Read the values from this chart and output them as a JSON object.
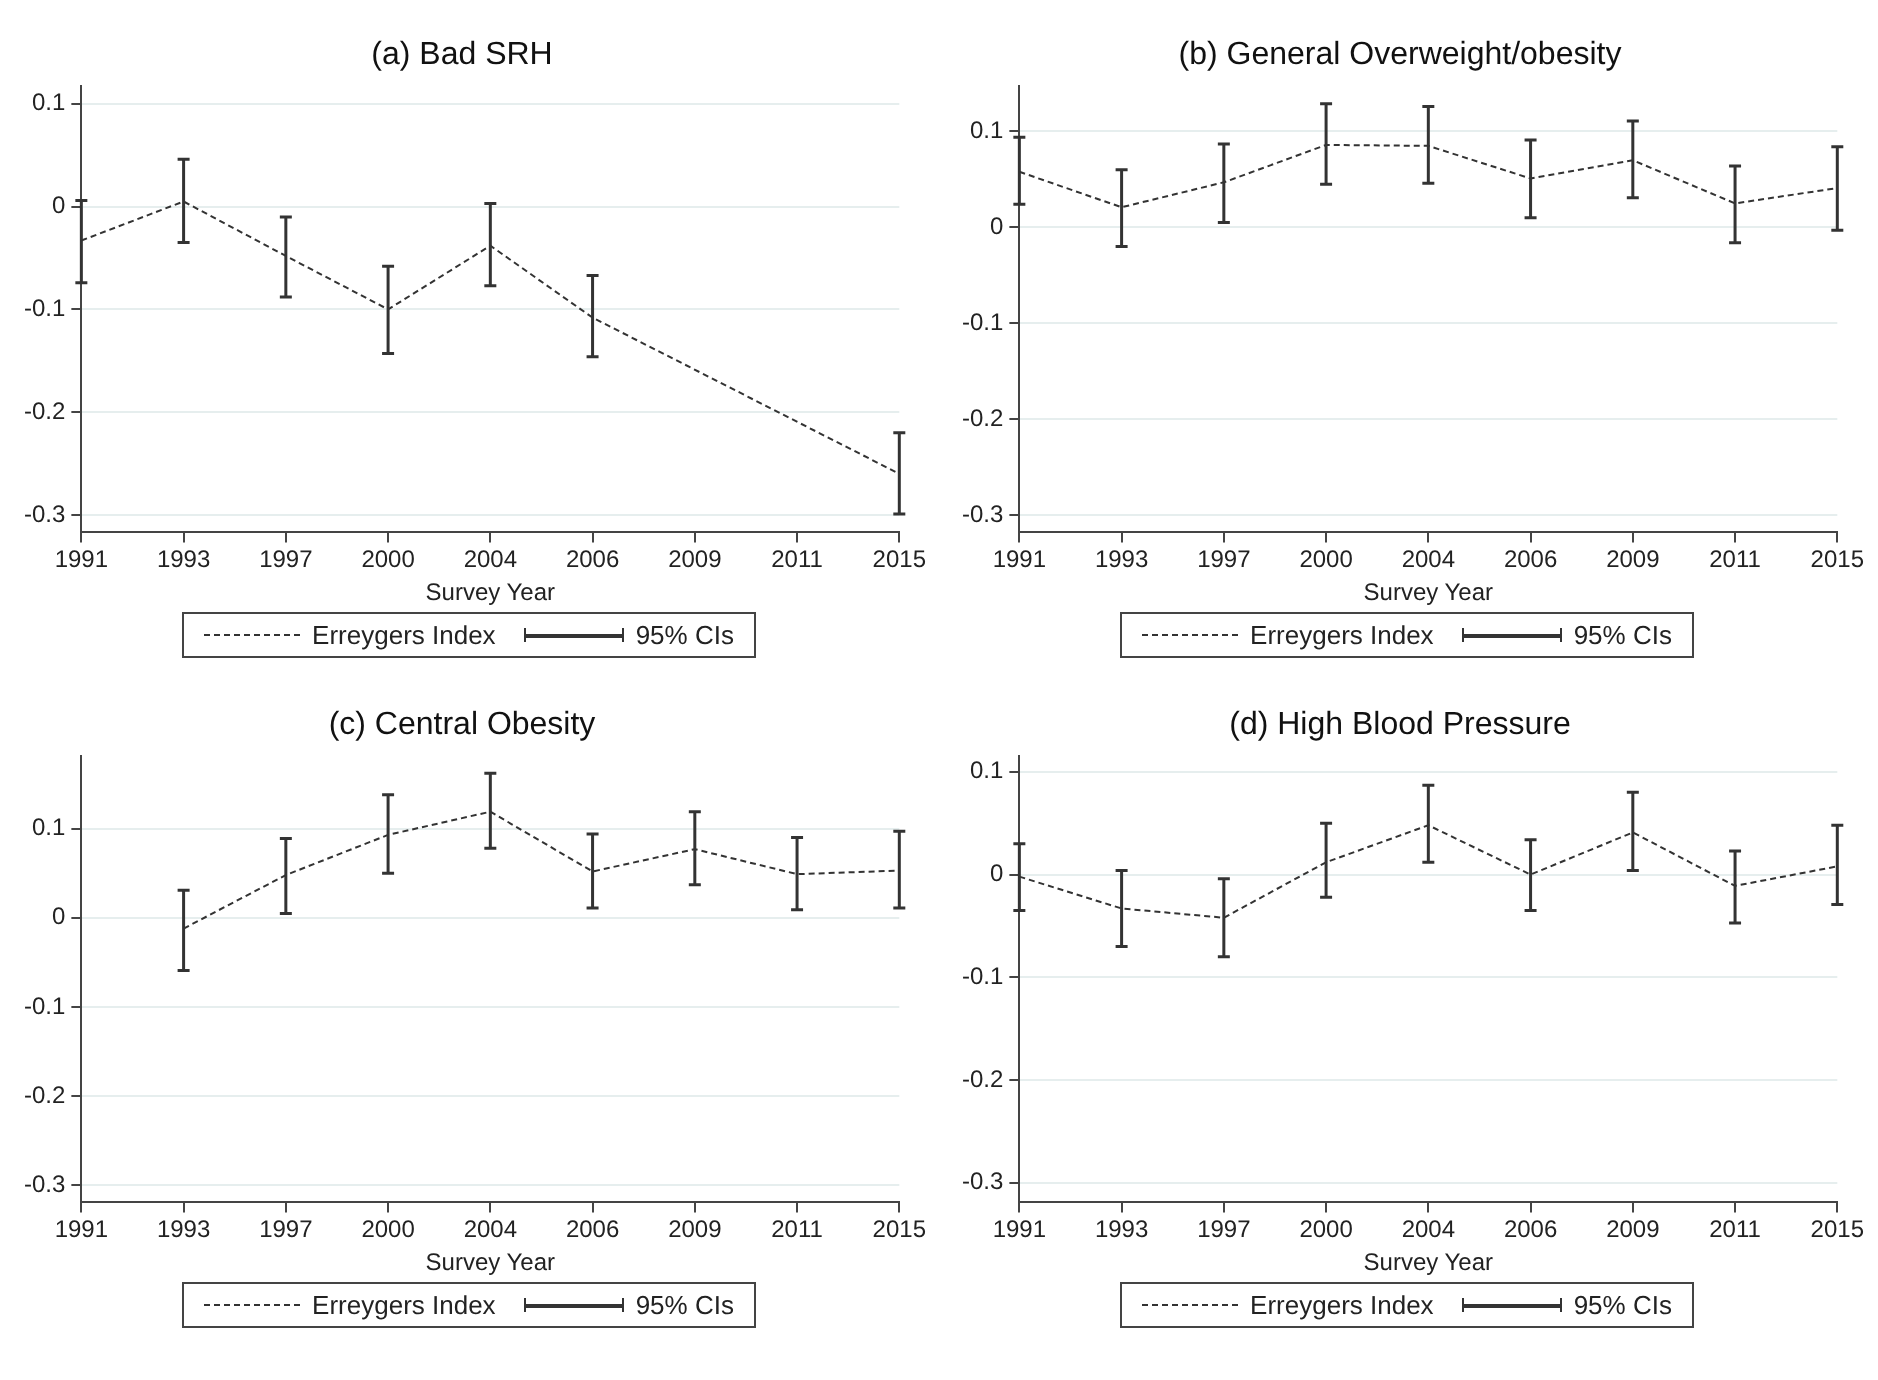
{
  "chart_data": [
    {
      "type": "line",
      "title": "(a) Bad SRH",
      "xlabel": "Survey Year",
      "categories": [
        "1991",
        "1993",
        "1997",
        "2000",
        "2004",
        "2006",
        "2009",
        "2011",
        "2015"
      ],
      "series": [
        {
          "name": "Erreygers Index",
          "color": "#333333",
          "values": [
            -0.033,
            0.005,
            -0.048,
            -0.1,
            -0.038,
            -0.108,
            null,
            null,
            -0.26
          ],
          "errors": [
            [
              -0.074,
              0.006
            ],
            [
              -0.035,
              0.046
            ],
            [
              -0.088,
              -0.01
            ],
            [
              -0.143,
              -0.058
            ],
            [
              -0.077,
              0.003
            ],
            [
              -0.146,
              -0.067
            ],
            null,
            null,
            [
              -0.299,
              -0.22
            ]
          ]
        }
      ],
      "ylim": [
        -0.317,
        0.117
      ],
      "yticks": [
        -0.3,
        -0.2,
        -0.1,
        0,
        0.1
      ],
      "grid": "y",
      "legend": "bottom",
      "marker": "none",
      "line_style": "dashed",
      "annotations": [
        "95% CIs"
      ]
    },
    {
      "type": "line",
      "title": "(b) General Overweight/obesity",
      "xlabel": "Survey Year",
      "categories": [
        "1991",
        "1993",
        "1997",
        "2000",
        "2004",
        "2006",
        "2009",
        "2011",
        "2015"
      ],
      "series": [
        {
          "name": "Erreygers Index",
          "color": "#333333",
          "values": [
            0.058,
            0.021,
            0.047,
            0.086,
            0.085,
            0.051,
            0.07,
            0.025,
            0.041
          ],
          "errors": [
            [
              0.024,
              0.094
            ],
            [
              -0.02,
              0.06
            ],
            [
              0.005,
              0.087
            ],
            [
              0.045,
              0.129
            ],
            [
              0.046,
              0.126
            ],
            [
              0.01,
              0.091
            ],
            [
              0.031,
              0.111
            ],
            [
              -0.016,
              0.064
            ],
            [
              -0.003,
              0.084
            ]
          ]
        }
      ],
      "ylim": [
        -0.318,
        0.147
      ],
      "yticks": [
        -0.3,
        -0.2,
        -0.1,
        0,
        0.1
      ],
      "grid": "y",
      "legend": "bottom",
      "marker": "none",
      "line_style": "dashed",
      "annotations": [
        "95% CIs"
      ]
    },
    {
      "type": "line",
      "title": "(c) Central Obesity",
      "xlabel": "Survey Year",
      "categories": [
        "1991",
        "1993",
        "1997",
        "2000",
        "2004",
        "2006",
        "2009",
        "2011",
        "2015"
      ],
      "series": [
        {
          "name": "Erreygers Index",
          "color": "#333333",
          "values": [
            null,
            -0.012,
            0.048,
            0.093,
            0.119,
            0.052,
            0.077,
            0.049,
            0.053
          ],
          "errors": [
            null,
            [
              -0.059,
              0.031
            ],
            [
              0.005,
              0.089
            ],
            [
              0.05,
              0.138
            ],
            [
              0.078,
              0.162
            ],
            [
              0.011,
              0.094
            ],
            [
              0.037,
              0.119
            ],
            [
              0.009,
              0.09
            ],
            [
              0.011,
              0.097
            ]
          ]
        }
      ],
      "ylim": [
        -0.319,
        0.181
      ],
      "yticks": [
        -0.3,
        -0.2,
        -0.1,
        0,
        0.1
      ],
      "grid": "y",
      "legend": "bottom",
      "marker": "none",
      "line_style": "dashed",
      "annotations": [
        "95% CIs"
      ]
    },
    {
      "type": "line",
      "title": "(d) High Blood Pressure",
      "xlabel": "Survey Year",
      "categories": [
        "1991",
        "1993",
        "1997",
        "2000",
        "2004",
        "2006",
        "2009",
        "2011",
        "2015"
      ],
      "series": [
        {
          "name": "Erreygers Index",
          "color": "#333333",
          "values": [
            -0.002,
            -0.033,
            -0.042,
            0.012,
            0.048,
            0,
            0.041,
            -0.011,
            0.008
          ],
          "errors": [
            [
              -0.035,
              0.03
            ],
            [
              -0.07,
              0.004
            ],
            [
              -0.08,
              -0.004
            ],
            [
              -0.022,
              0.05
            ],
            [
              0.012,
              0.087
            ],
            [
              -0.035,
              0.034
            ],
            [
              0.004,
              0.08
            ],
            [
              -0.047,
              0.023
            ],
            [
              -0.029,
              0.048
            ]
          ]
        }
      ],
      "ylim": [
        -0.319,
        0.115
      ],
      "yticks": [
        -0.3,
        -0.2,
        -0.1,
        0,
        0.1
      ],
      "grid": "y",
      "legend": "bottom",
      "marker": "none",
      "line_style": "dashed",
      "annotations": [
        "95% CIs"
      ]
    }
  ]
}
